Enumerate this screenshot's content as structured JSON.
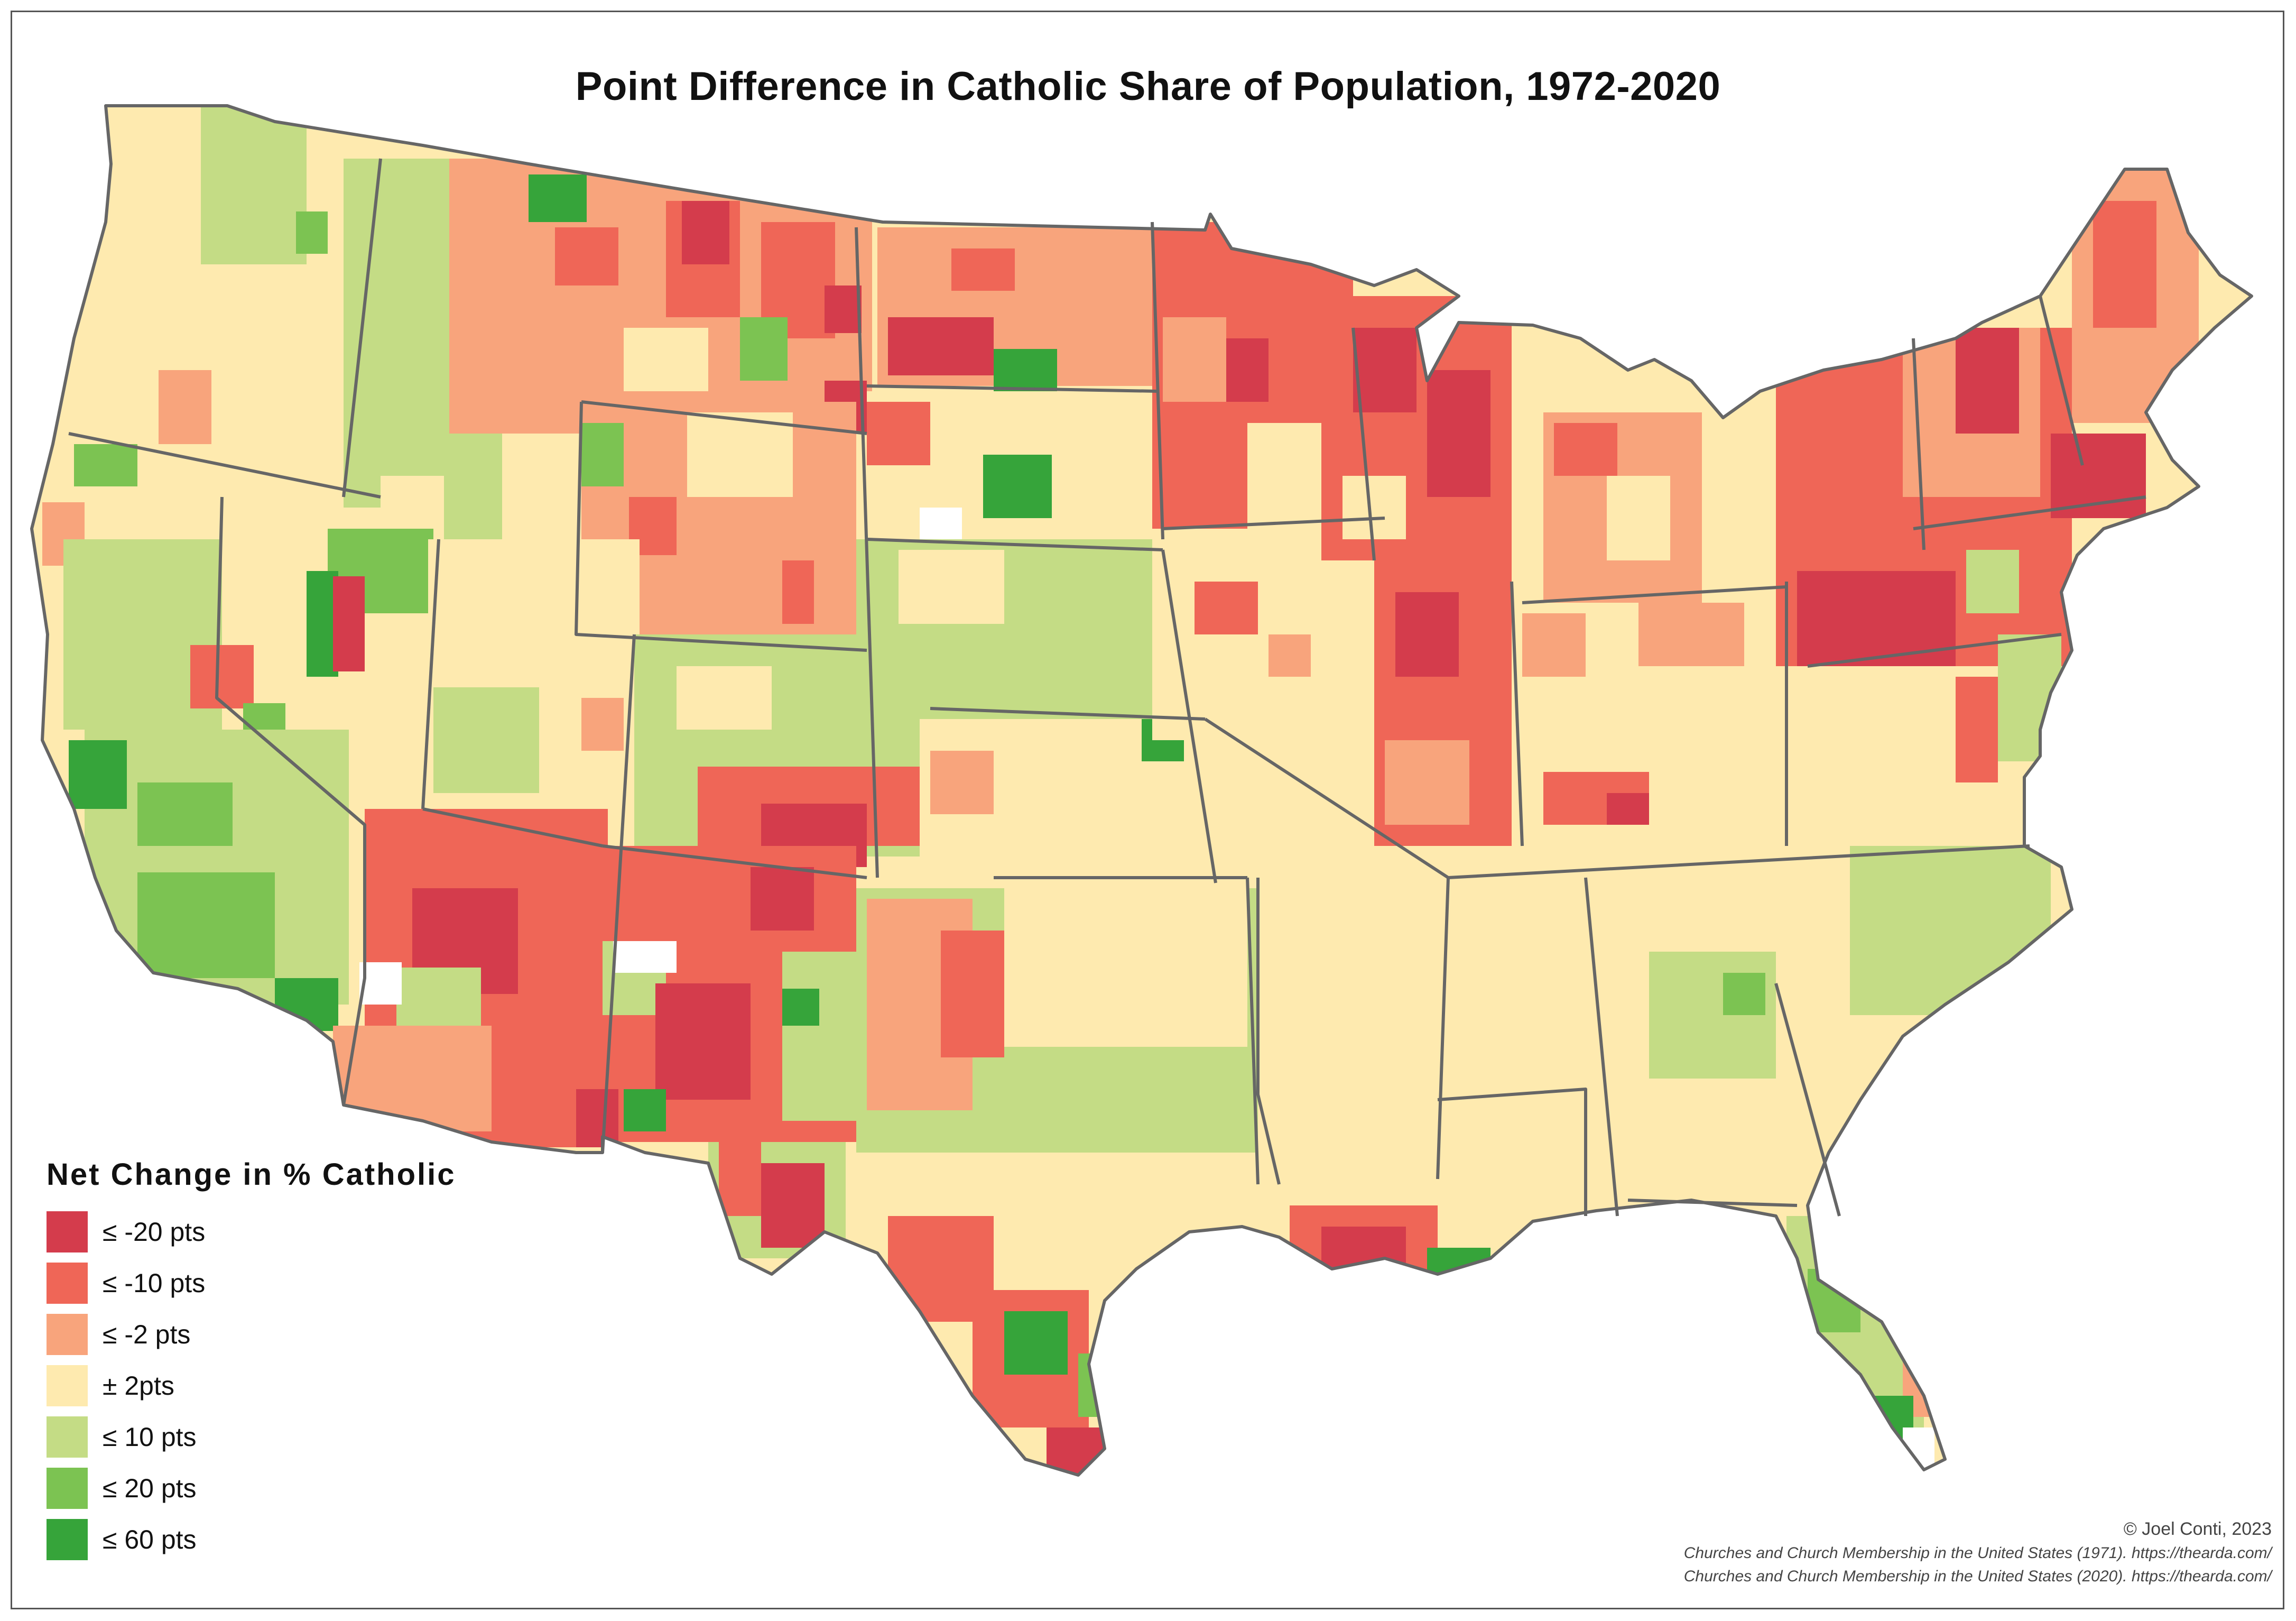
{
  "title": "Point Difference in Catholic Share of Population, 1972-2020",
  "legend": {
    "title": "Net Change in % Catholic",
    "items": [
      {
        "label": "≤ -20 pts",
        "color": "#d43c4c"
      },
      {
        "label": "≤ -10 pts",
        "color": "#ef6657"
      },
      {
        "label": "≤ -2 pts",
        "color": "#f8a47c"
      },
      {
        "label": "± 2pts",
        "color": "#feeaaf"
      },
      {
        "label": "≤ 10 pts",
        "color": "#c4dc85"
      },
      {
        "label": "≤ 20 pts",
        "color": "#7cc352"
      },
      {
        "label": "≤ 60 pts",
        "color": "#36a43a"
      }
    ]
  },
  "credits": {
    "author": "© Joel Conti, 2023",
    "source_1": "Churches and Church Membership in the United States (1971). https://thearda.com/",
    "source_2": "Churches and Church Membership in the United States (2020). https://thearda.com/"
  },
  "map": {
    "no_data_color": "#ffffff",
    "border_color": "#666666"
  }
}
